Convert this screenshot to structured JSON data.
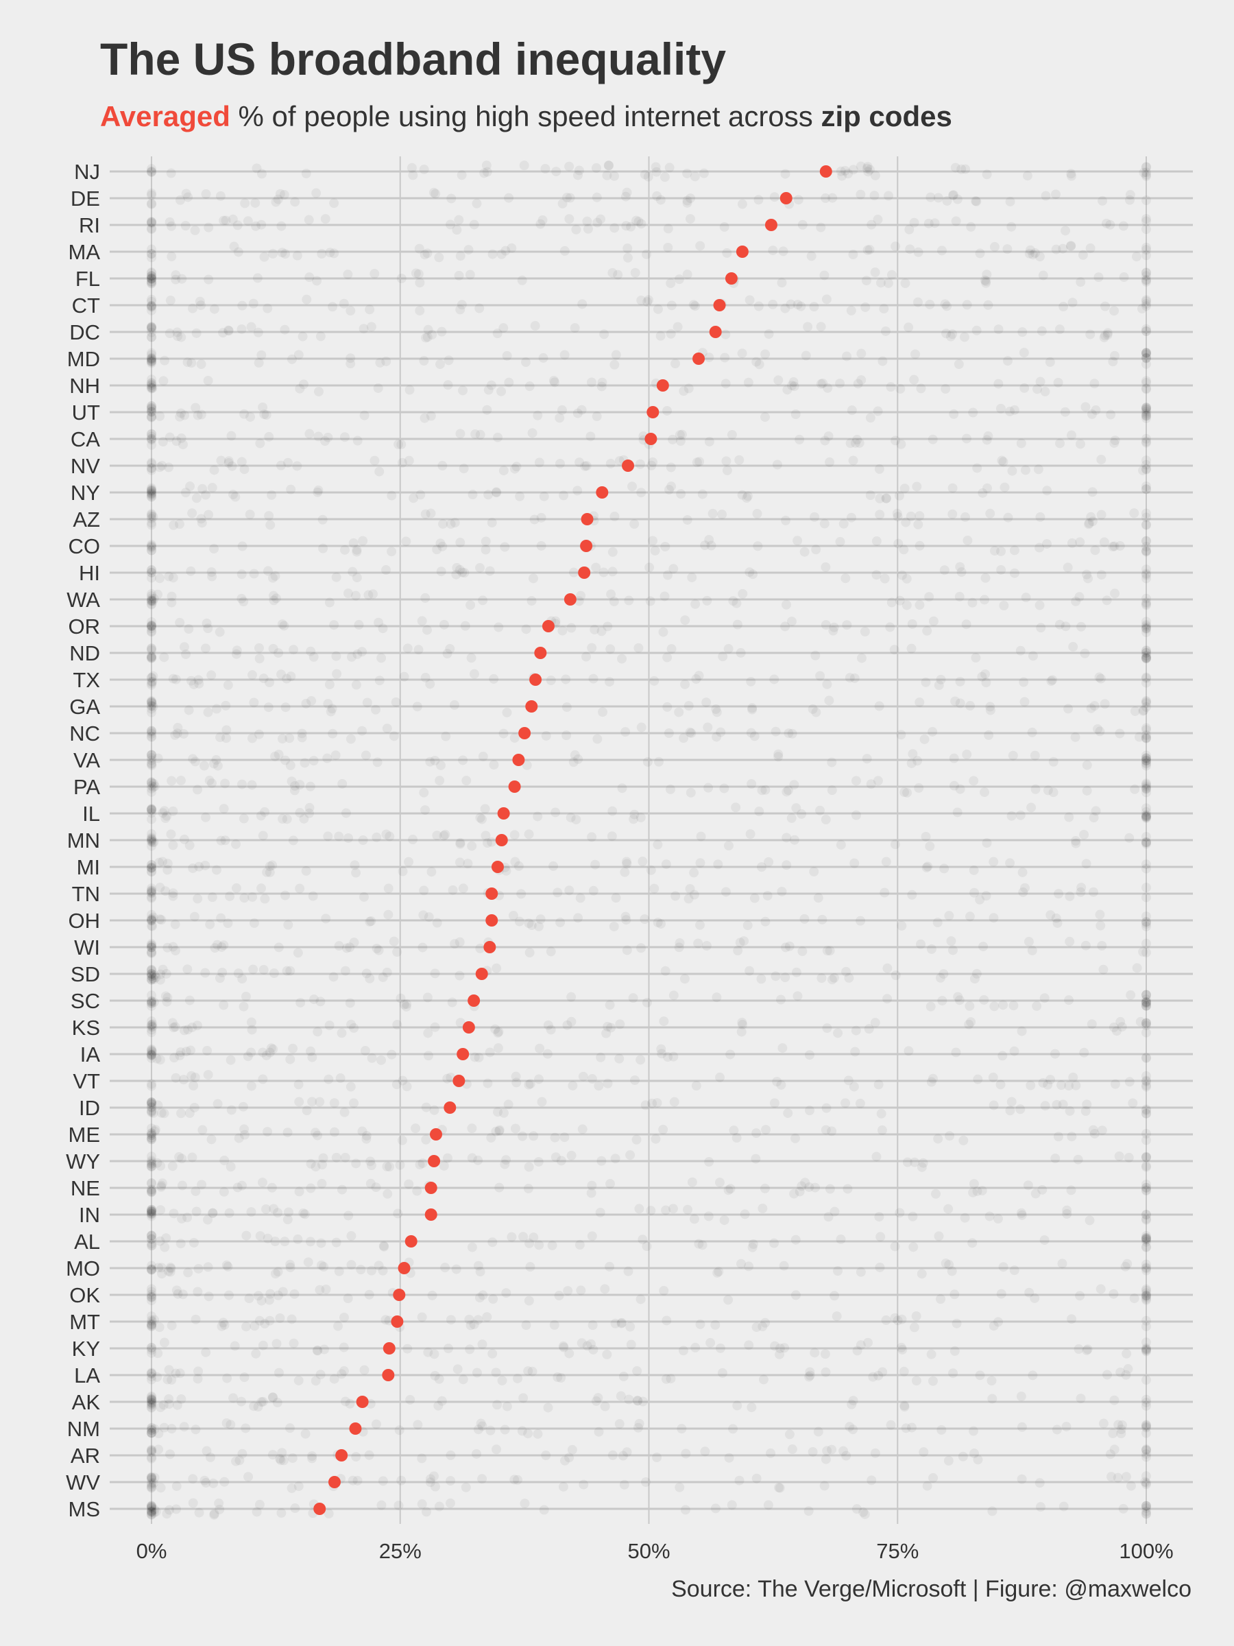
{
  "title": "The US broadband inequality",
  "subtitle": {
    "part1": "Averaged",
    "part2": " % of people using high speed internet across ",
    "part3": "zip codes"
  },
  "source": "Source: The Verge/Microsoft | Figure: @maxwelco",
  "colors": {
    "background": "#eeeeee",
    "accent": "#f04a3a",
    "grid": "#c8c8c8",
    "text": "#333333"
  },
  "chart_data": {
    "type": "scatter",
    "x_axis": {
      "ticks": [
        0,
        25,
        50,
        75,
        100
      ],
      "tick_labels": [
        "0%",
        "25%",
        "50%",
        "75%",
        "100%"
      ],
      "xlim": [
        -4,
        104
      ]
    },
    "grid": true,
    "background_points": "faint translucent grey dots showing each zip code's % per state (individual values not legible)",
    "series": [
      {
        "categories": [
          "NJ",
          "DE",
          "RI",
          "MA",
          "FL",
          "CT",
          "DC",
          "MD",
          "NH",
          "UT",
          "CA",
          "NV",
          "NY",
          "AZ",
          "CO",
          "HI",
          "WA",
          "OR",
          "ND",
          "TX",
          "GA",
          "NC",
          "VA",
          "PA",
          "IL",
          "MN",
          "MI",
          "TN",
          "OH",
          "WI",
          "SD",
          "SC",
          "KS",
          "IA",
          "VT",
          "ID",
          "ME",
          "WY",
          "NE",
          "IN",
          "AL",
          "MO",
          "OK",
          "MT",
          "KY",
          "LA",
          "AK",
          "NM",
          "AR",
          "WV",
          "MS"
        ],
        "values": [
          67.8,
          63.8,
          62.3,
          59.4,
          58.3,
          57.1,
          56.7,
          55.0,
          51.4,
          50.4,
          50.2,
          47.9,
          45.3,
          43.8,
          43.7,
          43.5,
          42.1,
          39.9,
          39.1,
          38.6,
          38.2,
          37.5,
          36.9,
          36.5,
          35.4,
          35.2,
          34.8,
          34.2,
          34.2,
          34.0,
          33.2,
          32.4,
          31.9,
          31.3,
          30.9,
          30.0,
          28.6,
          28.4,
          28.1,
          28.1,
          26.1,
          25.4,
          24.9,
          24.7,
          23.9,
          23.8,
          21.2,
          20.5,
          19.1,
          18.4,
          16.9
        ]
      }
    ]
  }
}
